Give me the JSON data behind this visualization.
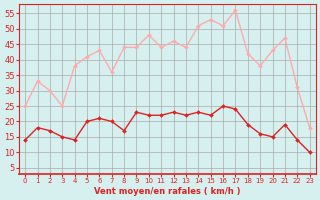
{
  "x": [
    0,
    1,
    2,
    3,
    4,
    5,
    6,
    7,
    8,
    9,
    10,
    11,
    12,
    13,
    14,
    15,
    16,
    17,
    18,
    19,
    20,
    21,
    22,
    23
  ],
  "avg_wind": [
    14,
    18,
    17,
    15,
    14,
    20,
    21,
    20,
    17,
    23,
    22,
    22,
    23,
    22,
    23,
    22,
    25,
    24,
    19,
    16,
    15,
    19,
    14,
    10
  ],
  "gust_wind": [
    25,
    33,
    30,
    25,
    38,
    41,
    43,
    36,
    44,
    44,
    48,
    44,
    46,
    44,
    51,
    53,
    51,
    56,
    42,
    38,
    43,
    47,
    31,
    18
  ],
  "bg_color": "#d6f0f0",
  "grid_color": "#aaaaaa",
  "avg_color": "#dd2222",
  "gust_color": "#ffaaaa",
  "xlabel": "Vent moyen/en rafales ( km/h )",
  "yticks": [
    5,
    10,
    15,
    20,
    25,
    30,
    35,
    40,
    45,
    50,
    55
  ],
  "xlim": [
    -0.5,
    23.5
  ],
  "ylim": [
    3,
    58
  ]
}
